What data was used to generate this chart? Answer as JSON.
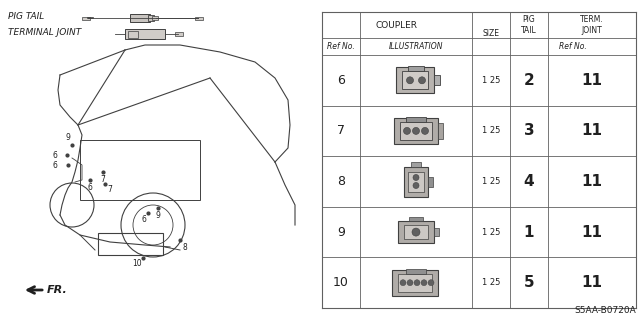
{
  "bg_color": "#f2f0ed",
  "title_code": "S5AA-B0720A",
  "pig_tail_label": "PIG TAIL",
  "terminal_joint_label": "TERMINAL JOINT",
  "fr_label": "FR.",
  "table_header_coupler": "COUPLER",
  "table_header_size": "SIZE",
  "table_header_pig_tail": "PIG\nTAIL",
  "table_header_term_joint": "TERM.\nJOINT",
  "rows": [
    {
      "ref": "6",
      "size": "1 25",
      "pig": "2",
      "joint": "11"
    },
    {
      "ref": "7",
      "size": "1 25",
      "pig": "3",
      "joint": "11"
    },
    {
      "ref": "8",
      "size": "1 25",
      "pig": "4",
      "joint": "11"
    },
    {
      "ref": "9",
      "size": "1 25",
      "pig": "1",
      "joint": "11"
    },
    {
      "ref": "10",
      "size": "1 25",
      "pig": "5",
      "joint": "11"
    }
  ],
  "lc": "#404040",
  "tc": "#202020",
  "tlc": "#606060",
  "white": "#ffffff"
}
